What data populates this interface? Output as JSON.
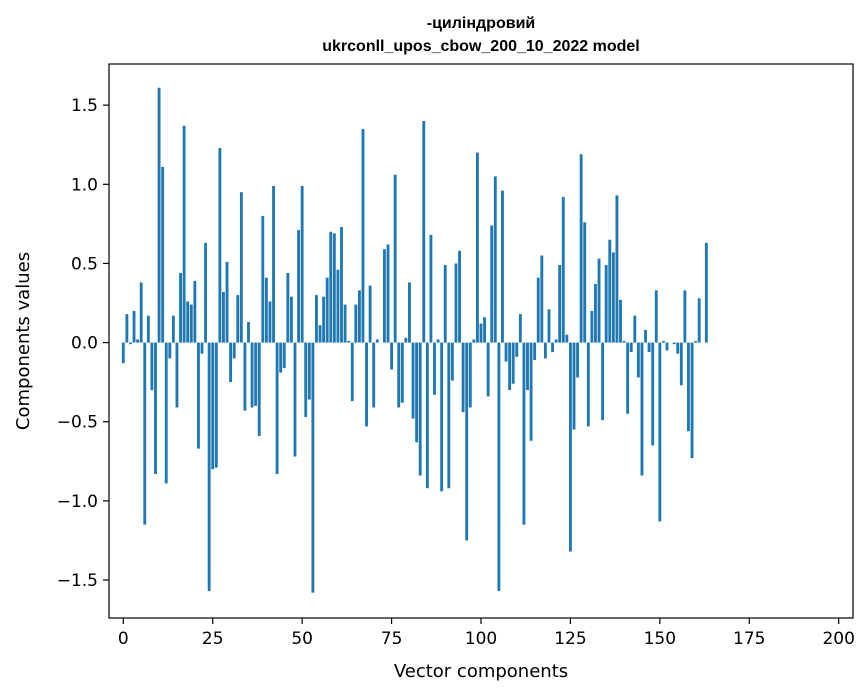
{
  "chart_data": {
    "type": "bar",
    "title_line1": "-циліндровий",
    "title_line2": "ukrconll_upos_cbow_200_10_2022 model",
    "xlabel": "Vector components",
    "ylabel": "Components values",
    "xlim": [
      -4,
      204
    ],
    "ylim": [
      -1.74,
      1.76
    ],
    "xticks": [
      0,
      25,
      50,
      75,
      100,
      125,
      150,
      175,
      200
    ],
    "xtick_labels": [
      "0",
      "25",
      "50",
      "75",
      "100",
      "125",
      "150",
      "175",
      "200"
    ],
    "yticks": [
      -1.5,
      -1.0,
      -0.5,
      0.0,
      0.5,
      1.0,
      1.5
    ],
    "ytick_labels": [
      "−1.5",
      "−1.0",
      "−0.5",
      "0.0",
      "0.5",
      "1.0",
      "1.5"
    ],
    "bar_color": "#1f77b4",
    "values": [
      -0.13,
      0.18,
      -0.01,
      0.2,
      0.02,
      0.38,
      -1.15,
      0.17,
      -0.3,
      -0.83,
      1.61,
      1.11,
      -0.89,
      -0.1,
      0.17,
      -0.41,
      0.44,
      1.37,
      0.26,
      0.24,
      0.39,
      -0.67,
      -0.07,
      0.63,
      -1.57,
      -0.8,
      -0.79,
      1.23,
      0.32,
      0.51,
      -0.25,
      -0.1,
      0.3,
      0.95,
      -0.43,
      0.13,
      -0.41,
      -0.4,
      -0.59,
      0.8,
      0.41,
      0.26,
      0.99,
      -0.83,
      -0.19,
      -0.16,
      0.44,
      0.29,
      -0.72,
      0.71,
      0.99,
      -0.47,
      -0.36,
      -1.58,
      0.3,
      0.11,
      0.29,
      0.41,
      0.7,
      0.69,
      0.46,
      0.73,
      0.24,
      0.01,
      -0.37,
      0.24,
      0.33,
      1.35,
      -0.53,
      0.36,
      -0.41,
      0.02,
      0.0,
      0.59,
      0.62,
      -0.17,
      1.06,
      -0.41,
      -0.38,
      0.03,
      0.38,
      -0.48,
      -0.63,
      -0.84,
      1.4,
      -0.92,
      0.68,
      -0.33,
      0.02,
      -0.94,
      0.49,
      -0.92,
      -0.24,
      0.5,
      0.58,
      -0.44,
      -1.25,
      -0.41,
      0.02,
      1.2,
      0.12,
      0.16,
      -0.34,
      0.74,
      1.05,
      -1.57,
      0.96,
      -0.12,
      -0.3,
      -0.26,
      -0.09,
      0.18,
      -1.15,
      -0.3,
      -0.62,
      -0.11,
      0.41,
      0.55,
      -0.1,
      0.21,
      -0.06,
      0.02,
      0.49,
      0.92,
      0.05,
      -1.32,
      -0.55,
      -0.22,
      1.19,
      0.76,
      -0.53,
      0.2,
      0.37,
      0.53,
      -0.49,
      0.49,
      0.65,
      0.57,
      0.93,
      0.27,
      0.01,
      -0.45,
      -0.06,
      0.17,
      -0.22,
      -0.84,
      0.08,
      -0.06,
      -0.65,
      0.33,
      -1.13,
      0.01,
      -0.05,
      0.0,
      -0.01,
      -0.07,
      -0.27,
      0.33,
      -0.56,
      -0.73,
      0.01,
      0.28,
      0.0,
      0.63,
      0.0,
      0.0,
      0.0,
      0.0,
      0.0,
      0.0,
      0.0,
      0.0,
      0.0,
      0.0,
      0.0,
      0.0,
      0.0,
      0.0,
      0.0,
      0.0,
      0.0,
      0.0,
      0.0,
      0.0,
      0.0,
      0.0,
      0.0,
      0.0,
      0.0,
      0.0,
      0.0,
      0.0,
      0.0,
      0.0,
      0.0,
      0.0,
      0.0,
      0.0,
      0.0,
      0.0
    ]
  }
}
